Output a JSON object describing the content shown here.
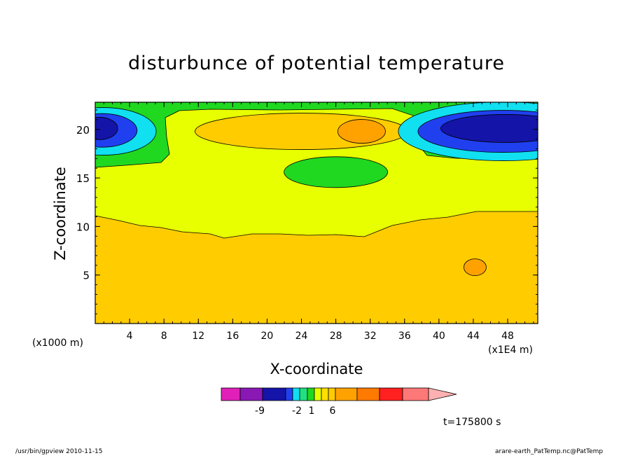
{
  "chart_data": {
    "type": "contour",
    "title": "disturbunce of potential temperature",
    "xlabel": "X-coordinate",
    "ylabel": "Z-coordinate",
    "x_unit_label": "(x1000 m)",
    "y_unit_label": "(x1E4 m)",
    "x_ticks": [
      4,
      8,
      12,
      16,
      20,
      24,
      28,
      32,
      36,
      40,
      44,
      48
    ],
    "y_ticks": [
      5,
      10,
      15,
      20
    ],
    "xlim": [
      0,
      51.5
    ],
    "ylim": [
      0,
      22.8
    ],
    "colorbar": {
      "colors": [
        "#e020b8",
        "#8a18b4",
        "#1414a8",
        "#2040f0",
        "#10e0f0",
        "#20e080",
        "#20d820",
        "#e8ff00",
        "#ffe000",
        "#ffcc00",
        "#ffa200",
        "#ff7a00",
        "#ff2020",
        "#ff7878",
        "#ffb0b0"
      ],
      "tick_labels": [
        "-9",
        "-2",
        "1",
        "6"
      ]
    },
    "regions": [
      {
        "level": "cyan-left",
        "color": "#10e0f0",
        "center": [
          0.9,
          19.8
        ]
      },
      {
        "level": "blue-left",
        "color": "#2040f0",
        "center": [
          0.8,
          19.9
        ]
      },
      {
        "level": "darkblue-left",
        "color": "#1414a8",
        "center": [
          0.5,
          20.1
        ]
      },
      {
        "level": "orange-upper",
        "color": "#ffcc00",
        "center": [
          24,
          19.8
        ]
      },
      {
        "level": "dark-orange-upper",
        "color": "#ffa200",
        "center": [
          31,
          19.8
        ]
      },
      {
        "level": "green-mid",
        "color": "#20d820",
        "center": [
          28,
          15.6
        ]
      },
      {
        "level": "cyan-right",
        "color": "#10e0f0",
        "center": [
          47.5,
          19.8
        ]
      },
      {
        "level": "blue-right",
        "color": "#2040f0",
        "center": [
          47.5,
          19.8
        ]
      },
      {
        "level": "darkblue-right",
        "color": "#1414a8",
        "center": [
          47.7,
          20.1
        ]
      },
      {
        "level": "dark-orange-small",
        "color": "#ffa200",
        "center": [
          44.2,
          5.8
        ]
      }
    ],
    "time_label": "t=175800 s"
  },
  "footer": {
    "left": "/usr/bin/gpview  2010-11-15",
    "right": "arare-earth_PatTemp.nc@PatTemp"
  }
}
